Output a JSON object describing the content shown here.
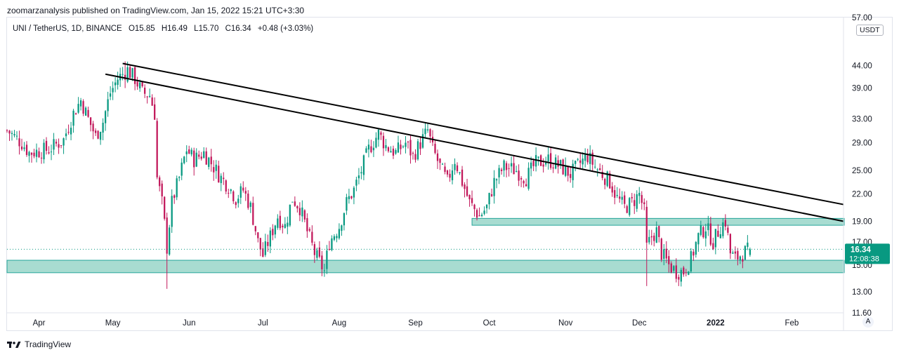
{
  "publisher": "zoomarzanalysis published on TradingView.com, Jan 15, 2022 15:21 UTC+3:30",
  "legend": {
    "symbol": "UNI / TetherUS, 1D, BINANCE",
    "open": "O15.85",
    "high": "H16.49",
    "low": "L15.70",
    "close": "C16.34",
    "change": "+0.48 (+3.03%)"
  },
  "price_axis": {
    "unit": "USDT",
    "last_price": "16.34",
    "countdown": "12:08:38"
  },
  "auto_scale_button": "A",
  "brand": "TradingView",
  "colors": {
    "up": "#089981",
    "down": "#c2185b",
    "zone_fill": "#a8dcd1",
    "zone_border": "#26a69a",
    "trendline": "#000000",
    "last_price_badge": "#089981"
  },
  "chart_data": {
    "type": "candlestick",
    "symbol": "UNI/USDT",
    "interval": "1D",
    "exchange": "BINANCE",
    "scale": "log",
    "ylim": [
      11.6,
      57.0
    ],
    "y_ticks": [
      "57.00",
      "44.00",
      "39.00",
      "33.00",
      "29.00",
      "25.00",
      "22.00",
      "19.00",
      "17.00",
      "15.00",
      "13.00",
      "11.60"
    ],
    "x_ticks": [
      "Apr",
      "May",
      "Jun",
      "Jul",
      "Aug",
      "Sep",
      "Oct",
      "Nov",
      "Dec",
      "2022",
      "Feb"
    ],
    "xlim": [
      "2021-03-19",
      "2022-02-22"
    ],
    "last_price": 16.34,
    "ohlc_last": {
      "open": 15.85,
      "high": 16.49,
      "low": 15.7,
      "close": 16.34,
      "change": 0.48,
      "change_pct": 3.03
    },
    "close_path": [
      [
        "2021-03-19",
        31.0
      ],
      [
        "2021-03-25",
        29.0
      ],
      [
        "2021-03-28",
        27.5
      ],
      [
        "2021-04-05",
        28.0
      ],
      [
        "2021-04-11",
        29.5
      ],
      [
        "2021-04-15",
        34.0
      ],
      [
        "2021-04-18",
        36.5
      ],
      [
        "2021-04-21",
        33.0
      ],
      [
        "2021-04-24",
        30.0
      ],
      [
        "2021-04-27",
        32.5
      ],
      [
        "2021-04-30",
        38.0
      ],
      [
        "2021-05-03",
        41.0
      ],
      [
        "2021-05-07",
        43.0
      ],
      [
        "2021-05-10",
        41.0
      ],
      [
        "2021-05-13",
        38.0
      ],
      [
        "2021-05-16",
        37.5
      ],
      [
        "2021-05-18",
        34.0
      ],
      [
        "2021-05-19",
        24.0
      ],
      [
        "2021-05-21",
        21.0
      ],
      [
        "2021-05-23",
        16.5
      ],
      [
        "2021-05-25",
        21.0
      ],
      [
        "2021-05-28",
        24.0
      ],
      [
        "2021-05-31",
        28.0
      ],
      [
        "2021-06-03",
        26.5
      ],
      [
        "2021-06-07",
        27.5
      ],
      [
        "2021-06-11",
        25.5
      ],
      [
        "2021-06-14",
        24.0
      ],
      [
        "2021-06-17",
        23.0
      ],
      [
        "2021-06-20",
        21.5
      ],
      [
        "2021-06-23",
        22.5
      ],
      [
        "2021-06-26",
        20.5
      ],
      [
        "2021-06-29",
        17.0
      ],
      [
        "2021-07-01",
        15.8
      ],
      [
        "2021-07-04",
        17.5
      ],
      [
        "2021-07-07",
        19.5
      ],
      [
        "2021-07-10",
        18.5
      ],
      [
        "2021-07-13",
        21.5
      ],
      [
        "2021-07-16",
        20.5
      ],
      [
        "2021-07-19",
        18.0
      ],
      [
        "2021-07-22",
        16.0
      ],
      [
        "2021-07-26",
        14.5
      ],
      [
        "2021-07-28",
        17.0
      ],
      [
        "2021-08-01",
        18.5
      ],
      [
        "2021-08-04",
        21.0
      ],
      [
        "2021-08-07",
        22.5
      ],
      [
        "2021-08-10",
        25.0
      ],
      [
        "2021-08-13",
        28.0
      ],
      [
        "2021-08-17",
        30.5
      ],
      [
        "2021-08-20",
        28.5
      ],
      [
        "2021-08-24",
        27.5
      ],
      [
        "2021-08-28",
        29.0
      ],
      [
        "2021-08-31",
        27.0
      ],
      [
        "2021-09-03",
        29.0
      ],
      [
        "2021-09-06",
        31.0
      ],
      [
        "2021-09-08",
        28.0
      ],
      [
        "2021-09-11",
        25.5
      ],
      [
        "2021-09-14",
        23.5
      ],
      [
        "2021-09-17",
        26.5
      ],
      [
        "2021-09-20",
        23.5
      ],
      [
        "2021-09-23",
        21.0
      ],
      [
        "2021-09-27",
        19.5
      ],
      [
        "2021-09-30",
        20.5
      ],
      [
        "2021-10-03",
        23.5
      ],
      [
        "2021-10-07",
        25.5
      ],
      [
        "2021-10-12",
        25.0
      ],
      [
        "2021-10-16",
        24.0
      ],
      [
        "2021-10-20",
        26.0
      ],
      [
        "2021-10-25",
        26.5
      ],
      [
        "2021-10-30",
        25.5
      ],
      [
        "2021-11-03",
        24.5
      ],
      [
        "2021-11-07",
        26.0
      ],
      [
        "2021-11-10",
        27.0
      ],
      [
        "2021-11-13",
        25.5
      ],
      [
        "2021-11-16",
        24.5
      ],
      [
        "2021-11-19",
        23.5
      ],
      [
        "2021-11-22",
        21.5
      ],
      [
        "2021-11-25",
        20.5
      ],
      [
        "2021-11-28",
        21.0
      ],
      [
        "2021-12-01",
        22.0
      ],
      [
        "2021-12-03",
        20.0
      ],
      [
        "2021-12-04",
        16.5
      ],
      [
        "2021-12-06",
        17.5
      ],
      [
        "2021-12-08",
        18.0
      ],
      [
        "2021-12-10",
        16.0
      ],
      [
        "2021-12-13",
        15.0
      ],
      [
        "2021-12-16",
        14.5
      ],
      [
        "2021-12-19",
        14.5
      ],
      [
        "2021-12-22",
        15.5
      ],
      [
        "2021-12-25",
        17.5
      ],
      [
        "2021-12-28",
        18.5
      ],
      [
        "2021-12-31",
        17.0
      ],
      [
        "2022-01-03",
        18.5
      ],
      [
        "2022-01-05",
        19.0
      ],
      [
        "2022-01-07",
        16.0
      ],
      [
        "2022-01-09",
        15.5
      ],
      [
        "2022-01-12",
        16.0
      ],
      [
        "2022-01-15",
        16.34
      ]
    ],
    "extremes": [
      {
        "date": "2021-05-06",
        "type": "high",
        "price": 45.0
      },
      {
        "date": "2021-05-23",
        "type": "low",
        "price": 13.2
      },
      {
        "date": "2021-12-04",
        "type": "low",
        "price": 13.4
      }
    ],
    "horizontal_zones": [
      {
        "from": 14.4,
        "to": 15.4
      },
      {
        "from": 18.6,
        "to": 19.3
      }
    ],
    "trendlines": [
      {
        "start": [
          "2021-05-05",
          44.5
        ],
        "end": [
          "2022-02-22",
          20.8
        ]
      },
      {
        "start": [
          "2021-04-28",
          42.0
        ],
        "end": [
          "2022-02-22",
          19.0
        ]
      }
    ]
  }
}
